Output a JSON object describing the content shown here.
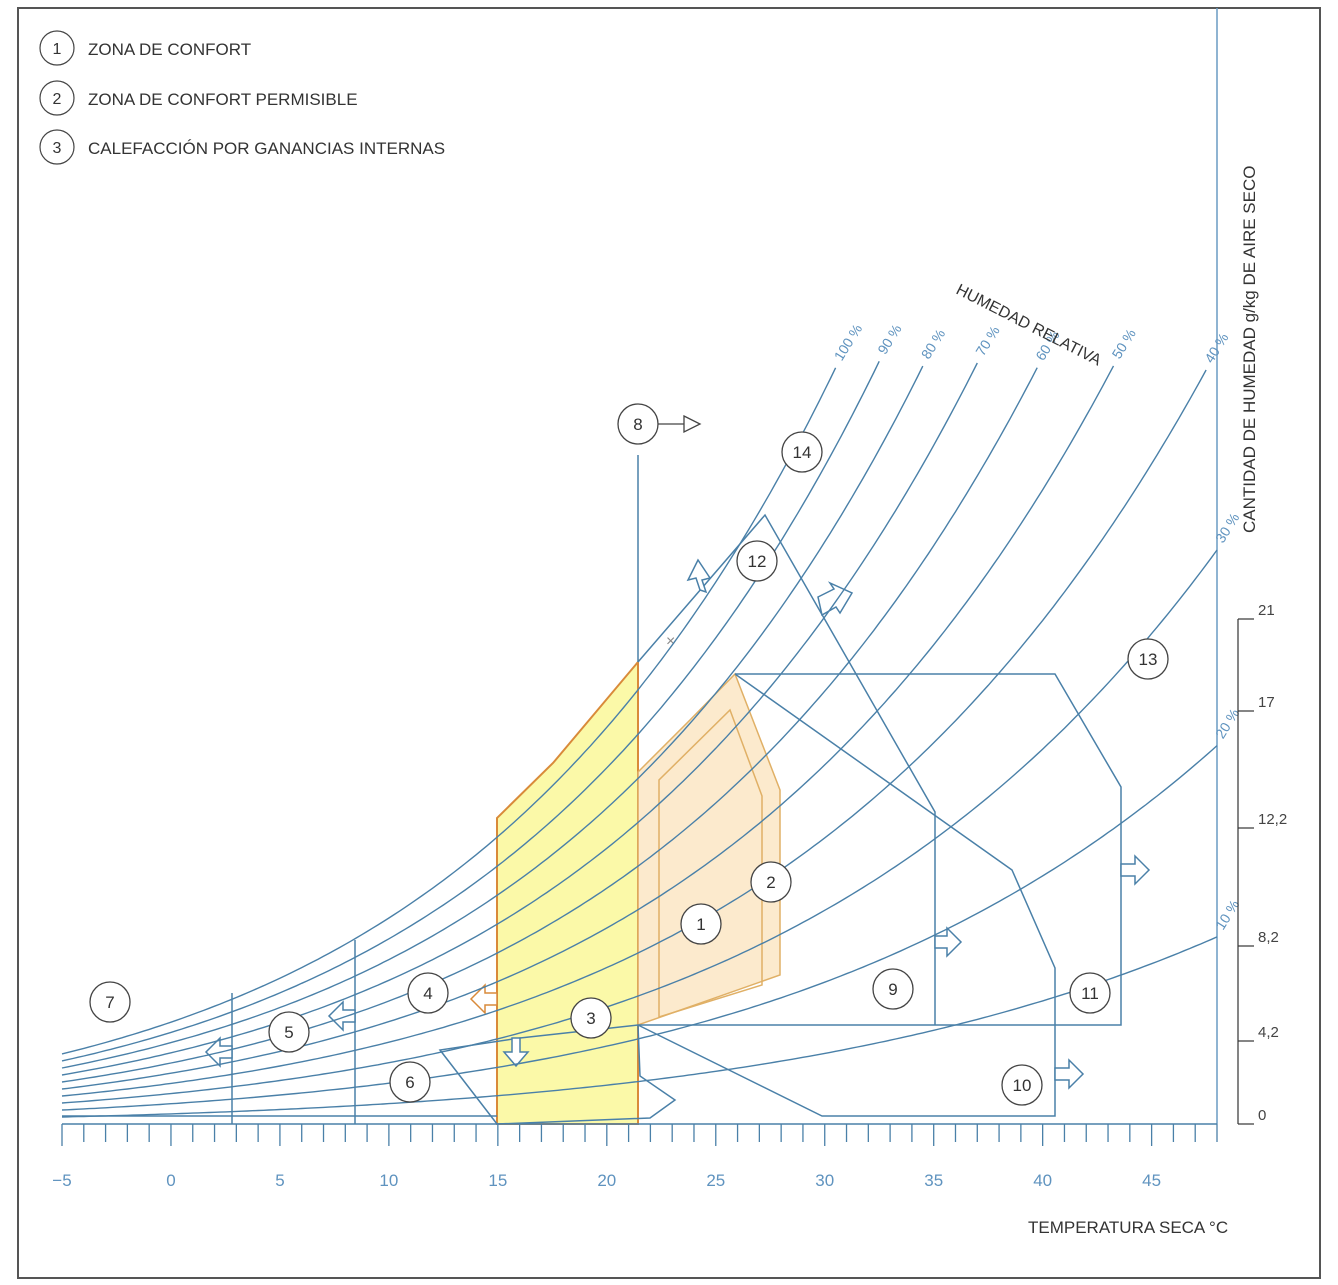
{
  "legend": [
    {
      "num": "1",
      "text": "ZONA DE CONFORT"
    },
    {
      "num": "2",
      "text": "ZONA DE CONFORT PERMISIBLE"
    },
    {
      "num": "3",
      "text": "CALEFACCIÓN POR GANANCIAS INTERNAS"
    }
  ],
  "colors": {
    "frame": "#555555",
    "curves": "#4a80a8",
    "ticks_text": "#5f93bf",
    "zone3_fill": "#fbf9a8",
    "zone3_stroke": "#d98a3a",
    "zone2_fill": "#fbe6c4",
    "zone2_stroke": "#e0b066",
    "text": "#333333"
  },
  "chart_data": {
    "type": "line",
    "title": "",
    "xlabel": "TEMPERATURA SECA °C",
    "ylabel": "CANTIDAD DE HUMEDAD g/kg DE AIRE SECO",
    "xlim": [
      -5,
      48
    ],
    "ylim": [
      0,
      30
    ],
    "x_ticks": [
      -5,
      0,
      5,
      10,
      15,
      20,
      25,
      30,
      35,
      40,
      45
    ],
    "y_ticks": [
      0,
      4.2,
      8.2,
      12.2,
      17,
      21
    ],
    "y_tick_labels": [
      "0",
      "4,2",
      "8,2",
      "12,2",
      "17",
      "21"
    ],
    "rh_label": "HUMEDAD RELATIVA",
    "rh_curves": [
      {
        "rh": 100,
        "label": "100 %"
      },
      {
        "rh": 90,
        "label": "90 %"
      },
      {
        "rh": 80,
        "label": "80 %"
      },
      {
        "rh": 70,
        "label": "70 %"
      },
      {
        "rh": 60,
        "label": "60 %"
      },
      {
        "rh": 50,
        "label": "50 %"
      },
      {
        "rh": 40,
        "label": "40 %"
      },
      {
        "rh": 30,
        "label": "30 %"
      },
      {
        "rh": 20,
        "label": "20 %"
      },
      {
        "rh": 10,
        "label": "10 %"
      }
    ],
    "zone_labels": [
      "1",
      "2",
      "3",
      "4",
      "5",
      "6",
      "7",
      "8",
      "9",
      "10",
      "11",
      "12",
      "13",
      "14"
    ]
  }
}
